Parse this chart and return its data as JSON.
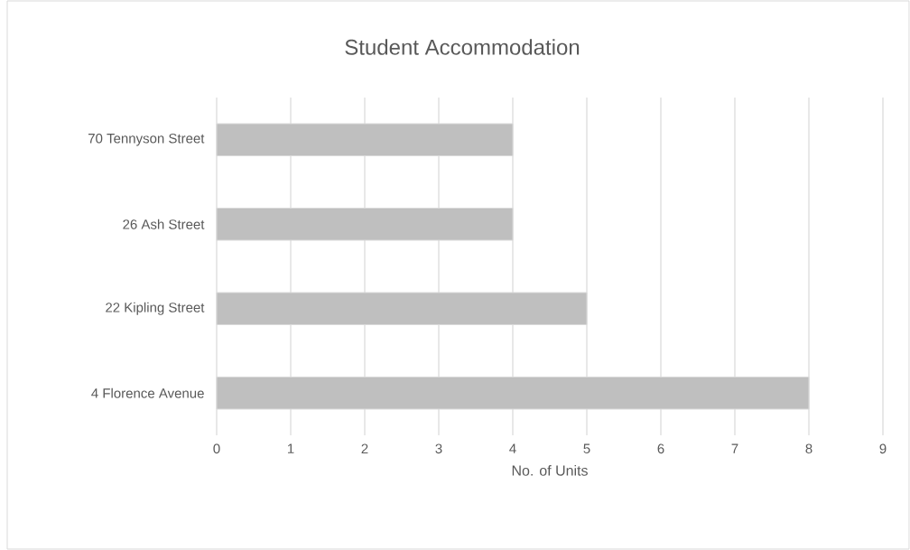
{
  "chart_data": {
    "type": "bar",
    "orientation": "horizontal",
    "title": "Student Accommodation",
    "xlabel": "No. of Units",
    "categories": [
      "70 Tennyson Street",
      "26 Ash Street",
      "22 Kipling Street",
      "4 Florence Avenue"
    ],
    "values": [
      4,
      4,
      5,
      8
    ],
    "color": "#bfbfbf",
    "xlim": [
      0,
      9
    ],
    "xticks": [
      0,
      1,
      2,
      3,
      4,
      5,
      6,
      7,
      8,
      9
    ],
    "grid": "x"
  }
}
